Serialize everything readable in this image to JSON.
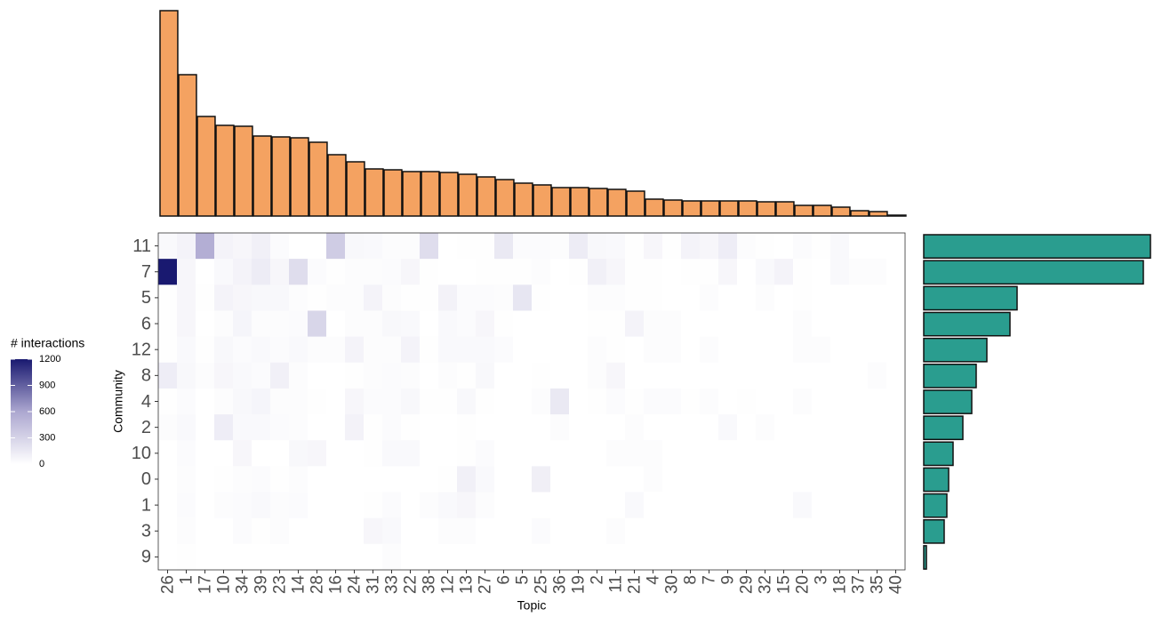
{
  "chart_data": [
    {
      "type": "bar",
      "orientation": "vertical",
      "color": "#f4a261",
      "values": [
        231,
        159,
        112,
        102,
        101,
        90,
        89,
        88,
        83,
        69,
        61,
        53,
        52,
        50,
        50,
        49,
        47,
        44,
        41,
        37,
        35,
        32,
        32,
        31,
        30,
        28,
        19,
        18,
        17,
        17,
        17,
        17,
        16,
        16,
        12,
        12,
        10,
        6,
        5,
        1
      ],
      "ylim": [
        0,
        231
      ]
    },
    {
      "type": "heatmap",
      "x_label": "Topic",
      "y_label": "Community",
      "legend_title": "# interactions",
      "x": [
        "26",
        "1",
        "17",
        "10",
        "34",
        "39",
        "23",
        "14",
        "28",
        "16",
        "24",
        "31",
        "33",
        "22",
        "38",
        "12",
        "13",
        "27",
        "6",
        "5",
        "25",
        "36",
        "19",
        "2",
        "11",
        "21",
        "4",
        "30",
        "8",
        "7",
        "9",
        "29",
        "32",
        "15",
        "20",
        "3",
        "18",
        "37",
        "35",
        "40"
      ],
      "y": [
        "11",
        "7",
        "5",
        "6",
        "12",
        "8",
        "4",
        "2",
        "10",
        "0",
        "1",
        "3",
        "9"
      ],
      "z": [
        [
          40,
          80,
          550,
          80,
          60,
          100,
          30,
          0,
          0,
          350,
          50,
          40,
          20,
          20,
          230,
          0,
          10,
          10,
          150,
          30,
          30,
          20,
          130,
          50,
          40,
          10,
          60,
          10,
          80,
          60,
          120,
          20,
          10,
          0,
          30,
          10,
          40,
          0,
          0,
          0
        ],
        [
          1200,
          60,
          0,
          40,
          80,
          130,
          60,
          230,
          30,
          10,
          20,
          20,
          30,
          60,
          10,
          0,
          0,
          10,
          10,
          10,
          20,
          0,
          10,
          100,
          60,
          10,
          10,
          0,
          10,
          10,
          60,
          0,
          40,
          80,
          10,
          0,
          40,
          20,
          20,
          0
        ],
        [
          10,
          60,
          10,
          80,
          60,
          50,
          50,
          20,
          10,
          20,
          20,
          80,
          20,
          10,
          10,
          90,
          30,
          30,
          20,
          170,
          10,
          0,
          0,
          20,
          20,
          10,
          10,
          0,
          0,
          20,
          0,
          0,
          20,
          0,
          10,
          0,
          0,
          0,
          0,
          0
        ],
        [
          10,
          60,
          0,
          20,
          70,
          20,
          20,
          30,
          280,
          0,
          20,
          20,
          50,
          40,
          0,
          40,
          30,
          60,
          10,
          0,
          0,
          0,
          0,
          10,
          10,
          80,
          20,
          20,
          0,
          0,
          0,
          0,
          0,
          0,
          20,
          0,
          0,
          0,
          0,
          0
        ],
        [
          10,
          40,
          10,
          50,
          30,
          40,
          30,
          40,
          20,
          20,
          80,
          20,
          20,
          80,
          10,
          40,
          40,
          40,
          30,
          0,
          0,
          0,
          0,
          20,
          10,
          0,
          20,
          20,
          0,
          20,
          0,
          0,
          0,
          0,
          20,
          20,
          0,
          0,
          0,
          0
        ],
        [
          120,
          50,
          20,
          60,
          40,
          30,
          100,
          20,
          0,
          0,
          10,
          20,
          30,
          20,
          0,
          20,
          10,
          50,
          0,
          0,
          10,
          0,
          0,
          20,
          60,
          0,
          0,
          0,
          0,
          0,
          0,
          0,
          0,
          0,
          0,
          0,
          0,
          0,
          20,
          0
        ],
        [
          10,
          30,
          0,
          20,
          50,
          70,
          20,
          20,
          10,
          0,
          60,
          30,
          30,
          50,
          10,
          10,
          50,
          10,
          0,
          0,
          20,
          150,
          0,
          10,
          30,
          10,
          30,
          30,
          10,
          20,
          0,
          10,
          0,
          0,
          20,
          0,
          0,
          0,
          0,
          0
        ],
        [
          20,
          40,
          0,
          120,
          40,
          40,
          30,
          20,
          0,
          0,
          90,
          10,
          30,
          10,
          0,
          0,
          10,
          0,
          0,
          0,
          0,
          20,
          0,
          0,
          0,
          20,
          0,
          0,
          0,
          0,
          40,
          0,
          20,
          0,
          0,
          0,
          0,
          0,
          0,
          0
        ],
        [
          0,
          30,
          0,
          0,
          60,
          0,
          0,
          50,
          60,
          0,
          0,
          10,
          40,
          40,
          0,
          0,
          10,
          30,
          0,
          0,
          0,
          0,
          0,
          0,
          20,
          20,
          20,
          0,
          0,
          0,
          0,
          0,
          0,
          0,
          0,
          0,
          0,
          0,
          0,
          0
        ],
        [
          0,
          20,
          0,
          10,
          20,
          30,
          10,
          20,
          0,
          0,
          0,
          0,
          0,
          0,
          0,
          10,
          100,
          40,
          0,
          0,
          110,
          0,
          0,
          0,
          0,
          0,
          20,
          0,
          0,
          0,
          0,
          0,
          0,
          0,
          0,
          0,
          0,
          0,
          0,
          0
        ],
        [
          0,
          30,
          0,
          20,
          30,
          40,
          20,
          30,
          0,
          0,
          0,
          10,
          30,
          0,
          20,
          40,
          60,
          20,
          0,
          0,
          0,
          0,
          0,
          0,
          0,
          40,
          0,
          0,
          0,
          0,
          0,
          0,
          0,
          0,
          40,
          0,
          0,
          0,
          0,
          0
        ],
        [
          0,
          20,
          0,
          0,
          30,
          10,
          20,
          0,
          0,
          0,
          0,
          60,
          40,
          0,
          0,
          20,
          20,
          0,
          0,
          0,
          30,
          0,
          0,
          0,
          20,
          0,
          0,
          0,
          0,
          0,
          0,
          0,
          0,
          0,
          0,
          0,
          0,
          0,
          0,
          0
        ],
        [
          0,
          10,
          0,
          0,
          0,
          0,
          0,
          0,
          0,
          0,
          0,
          0,
          20,
          0,
          0,
          0,
          0,
          0,
          0,
          0,
          0,
          0,
          0,
          0,
          0,
          0,
          0,
          0,
          0,
          0,
          0,
          0,
          0,
          0,
          0,
          0,
          0,
          0,
          0,
          0
        ]
      ],
      "zlim": [
        0,
        1200
      ],
      "zticks": [
        0,
        300,
        600,
        900,
        1200
      ],
      "colors": [
        "#ffffff",
        "#aca7d0",
        "#191970"
      ]
    },
    {
      "type": "bar",
      "orientation": "horizontal",
      "color": "#2a9d8f",
      "values": [
        255,
        247,
        105,
        97,
        71,
        59,
        54,
        44,
        33,
        28,
        26,
        23,
        3
      ],
      "xlim": [
        0,
        255
      ]
    }
  ]
}
